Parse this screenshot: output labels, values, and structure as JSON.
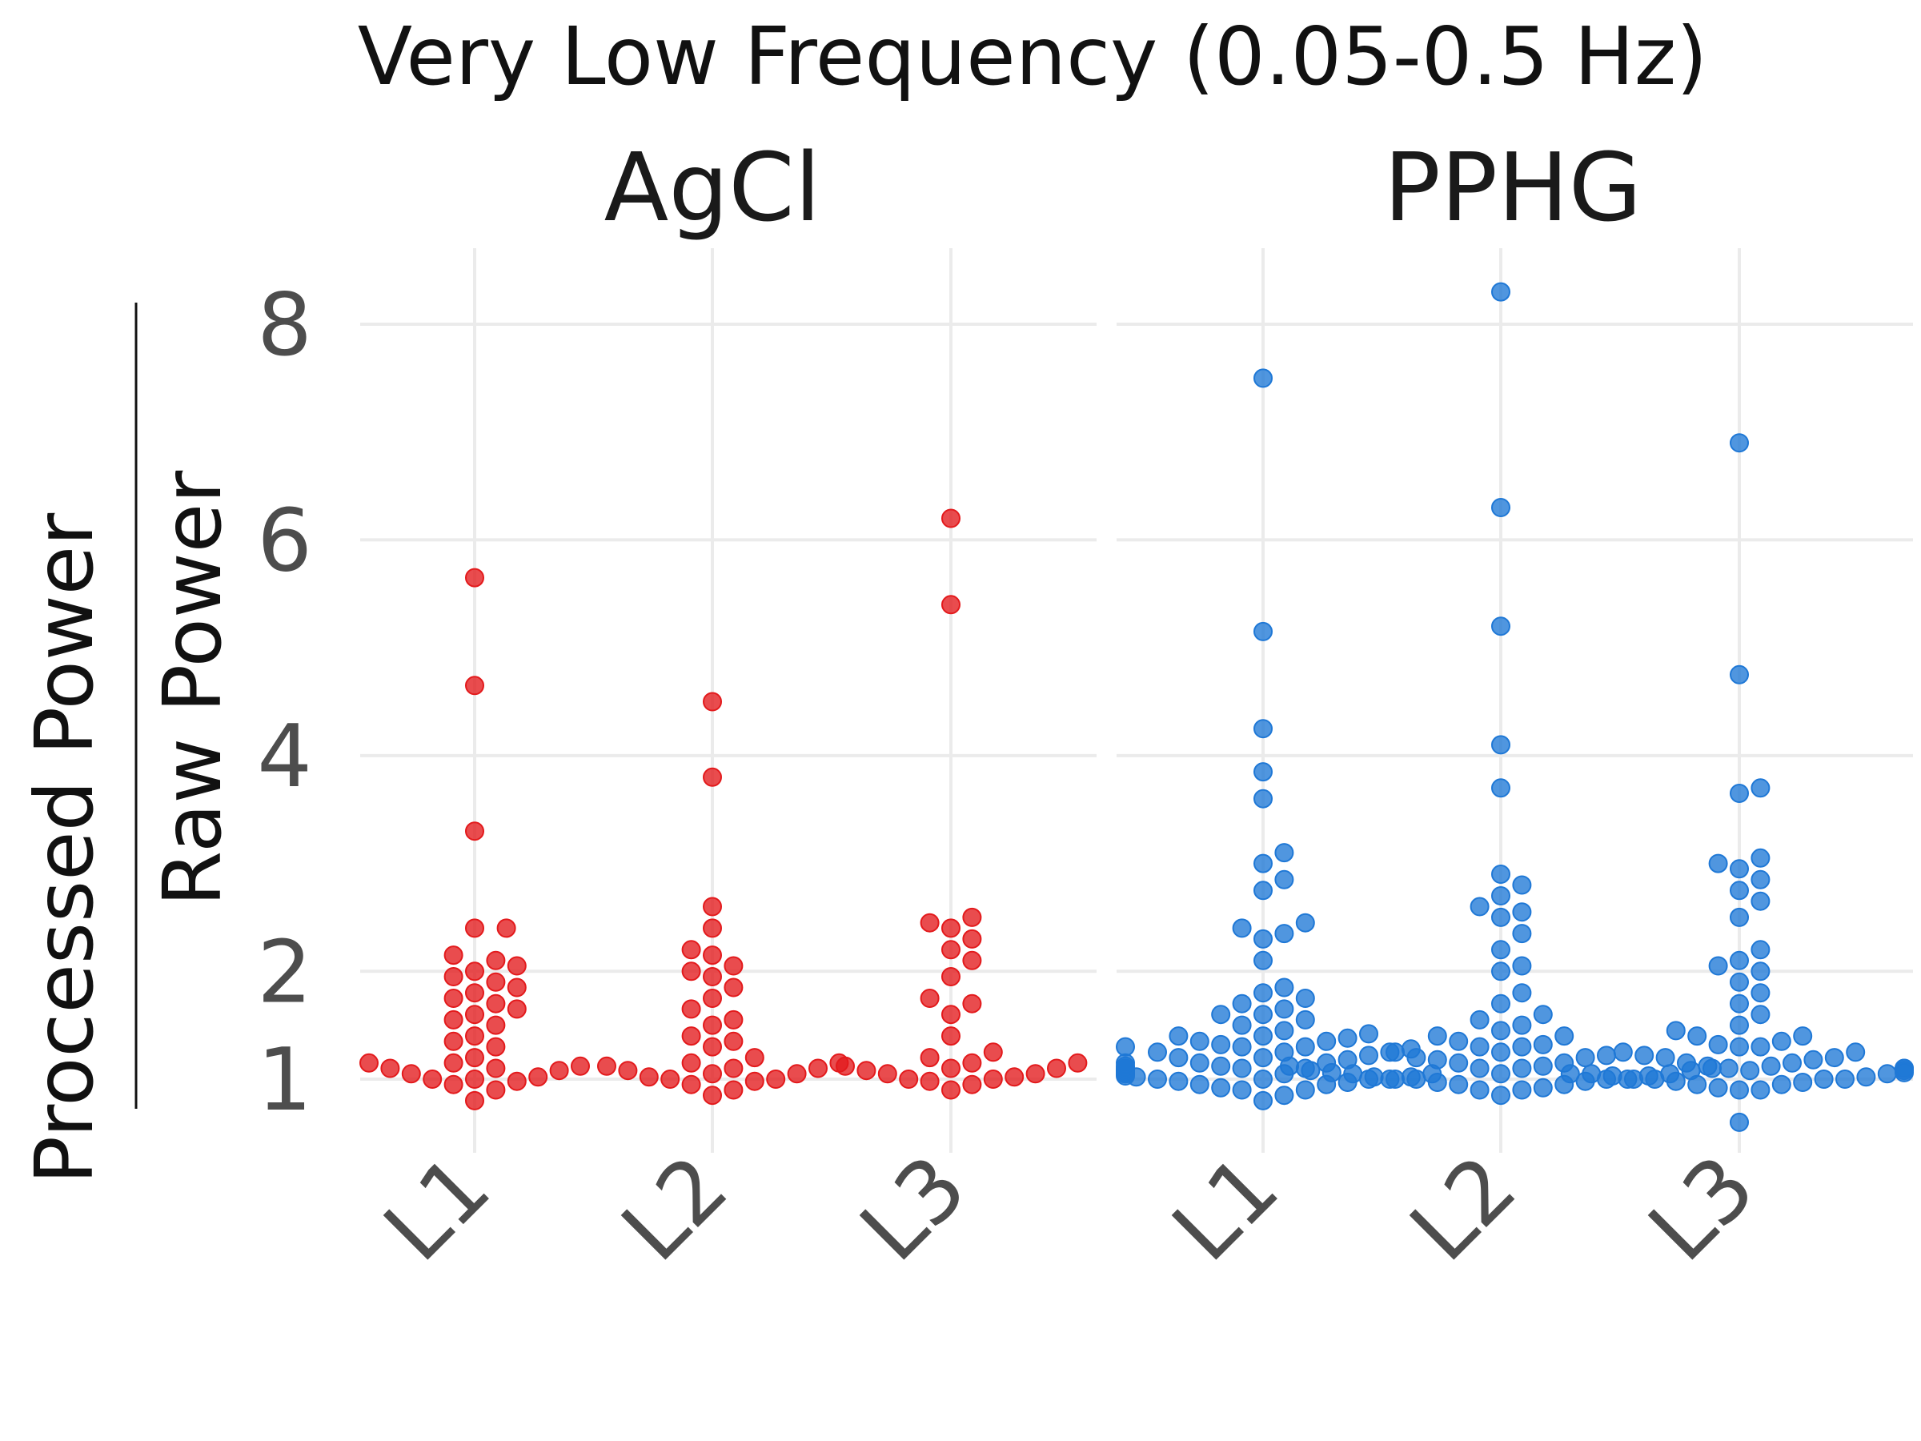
{
  "chart_data": {
    "type": "scatter",
    "title": "Very Low Frequency (0.05-0.5 Hz)",
    "ylabel": {
      "numerator": "Processed Power",
      "denominator": "Raw Power"
    },
    "yticks": [
      1,
      2,
      4,
      6,
      8
    ],
    "ylim": [
      0.4,
      8.7
    ],
    "categories": [
      "L1",
      "L2",
      "L3"
    ],
    "grid": true,
    "legend": "none",
    "panels": [
      {
        "name": "AgCl",
        "color": "#e31a1c",
        "series": [
          {
            "category": "L1",
            "values": [
              0.8,
              0.9,
              0.95,
              0.98,
              1.0,
              1.0,
              1.02,
              1.05,
              1.08,
              1.1,
              1.1,
              1.12,
              1.15,
              1.15,
              1.2,
              1.3,
              1.35,
              1.4,
              1.5,
              1.55,
              1.6,
              1.65,
              1.7,
              1.75,
              1.8,
              1.85,
              1.9,
              1.95,
              2.0,
              2.05,
              2.1,
              2.15,
              2.4,
              2.4,
              3.3,
              4.65,
              5.65
            ]
          },
          {
            "category": "L2",
            "values": [
              0.85,
              0.9,
              0.95,
              0.98,
              1.0,
              1.0,
              1.02,
              1.05,
              1.05,
              1.08,
              1.1,
              1.1,
              1.12,
              1.15,
              1.15,
              1.2,
              1.3,
              1.35,
              1.4,
              1.5,
              1.55,
              1.65,
              1.75,
              1.85,
              1.95,
              2.0,
              2.05,
              2.15,
              2.2,
              2.4,
              2.6,
              3.8,
              4.5
            ]
          },
          {
            "category": "L3",
            "values": [
              0.9,
              0.95,
              0.98,
              1.0,
              1.0,
              1.02,
              1.05,
              1.05,
              1.08,
              1.1,
              1.1,
              1.12,
              1.15,
              1.15,
              1.2,
              1.25,
              1.4,
              1.6,
              1.7,
              1.75,
              1.95,
              2.1,
              2.2,
              2.3,
              2.4,
              2.45,
              2.5,
              5.4,
              6.2
            ]
          }
        ]
      },
      {
        "name": "PPHG",
        "color": "#1f78d6",
        "series": [
          {
            "category": "L1",
            "values": [
              0.8,
              0.85,
              0.9,
              0.9,
              0.92,
              0.95,
              0.95,
              0.97,
              0.98,
              1.0,
              1.0,
              1.0,
              1.0,
              1.02,
              1.02,
              1.03,
              1.05,
              1.05,
              1.05,
              1.05,
              1.06,
              1.08,
              1.08,
              1.08,
              1.1,
              1.1,
              1.1,
              1.1,
              1.12,
              1.12,
              1.15,
              1.15,
              1.15,
              1.18,
              1.2,
              1.2,
              1.22,
              1.25,
              1.25,
              1.25,
              1.28,
              1.3,
              1.3,
              1.3,
              1.32,
              1.35,
              1.35,
              1.38,
              1.4,
              1.4,
              1.42,
              1.45,
              1.5,
              1.55,
              1.6,
              1.6,
              1.65,
              1.7,
              1.75,
              1.8,
              1.85,
              2.1,
              2.3,
              2.35,
              2.4,
              2.45,
              2.75,
              2.85,
              3.0,
              3.1,
              3.6,
              3.85,
              4.25,
              5.15,
              7.5
            ]
          },
          {
            "category": "L2",
            "values": [
              0.85,
              0.9,
              0.9,
              0.92,
              0.95,
              0.95,
              0.97,
              0.98,
              1.0,
              1.0,
              1.0,
              1.0,
              1.02,
              1.03,
              1.05,
              1.05,
              1.05,
              1.06,
              1.08,
              1.08,
              1.1,
              1.1,
              1.1,
              1.12,
              1.12,
              1.15,
              1.15,
              1.18,
              1.2,
              1.2,
              1.22,
              1.25,
              1.25,
              1.3,
              1.3,
              1.32,
              1.35,
              1.4,
              1.4,
              1.45,
              1.5,
              1.55,
              1.6,
              1.7,
              1.8,
              2.0,
              2.05,
              2.2,
              2.35,
              2.5,
              2.55,
              2.6,
              2.7,
              2.8,
              2.9,
              3.7,
              4.1,
              5.2,
              6.3,
              8.3
            ]
          },
          {
            "category": "L3",
            "values": [
              0.6,
              0.9,
              0.9,
              0.92,
              0.95,
              0.95,
              0.97,
              0.98,
              1.0,
              1.0,
              1.0,
              1.0,
              1.02,
              1.03,
              1.05,
              1.05,
              1.05,
              1.06,
              1.08,
              1.08,
              1.1,
              1.1,
              1.1,
              1.12,
              1.12,
              1.15,
              1.15,
              1.18,
              1.2,
              1.2,
              1.22,
              1.25,
              1.25,
              1.3,
              1.3,
              1.32,
              1.35,
              1.4,
              1.4,
              1.45,
              1.5,
              1.6,
              1.7,
              1.8,
              1.9,
              2.0,
              2.05,
              2.1,
              2.2,
              2.5,
              2.65,
              2.75,
              2.85,
              2.95,
              3.0,
              3.05,
              3.65,
              3.7,
              4.75,
              6.9
            ]
          }
        ]
      }
    ]
  }
}
